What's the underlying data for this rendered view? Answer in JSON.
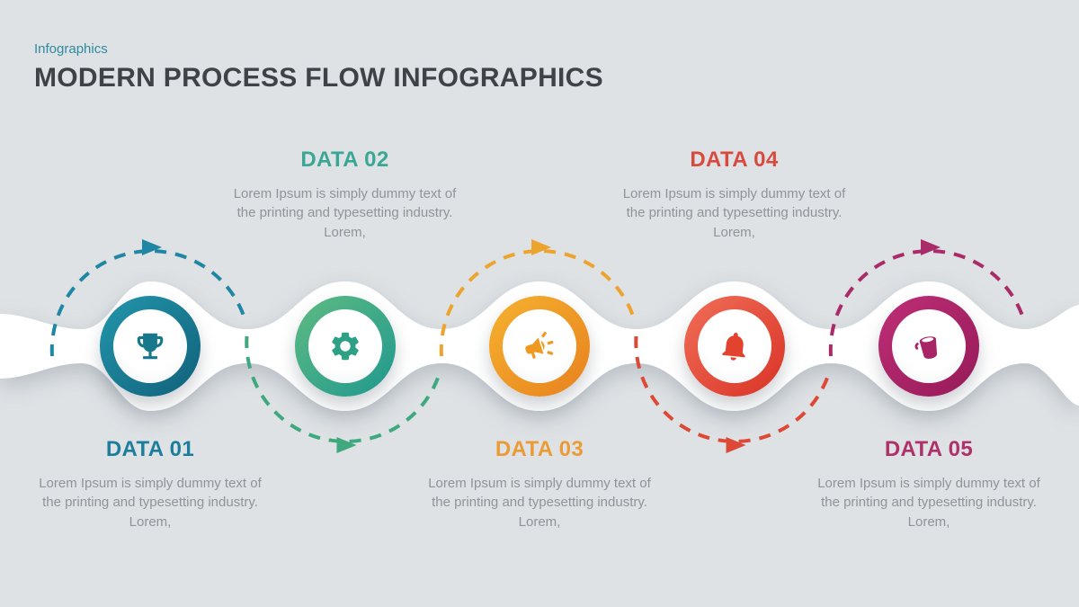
{
  "page": {
    "background_color": "#dee2e5",
    "ribbon_color": "#ffffff",
    "body_text_color": "#8f9499"
  },
  "header": {
    "eyebrow": "Infographics",
    "eyebrow_color": "#2e8ba0",
    "title": "MODERN PROCESS FLOW INFOGRAPHICS",
    "title_color": "#3e4347"
  },
  "steps": [
    {
      "title": "DATA 01",
      "description": "Lorem Ipsum is simply dummy text of the printing and typesetting industry. Lorem,",
      "label_position": "bottom",
      "icon": "trophy-icon",
      "label_color": "#1b7e9c",
      "ring_from": "#2297ac",
      "ring_to": "#11607a",
      "icon_color": "#17778c",
      "arrow_color": "#1f87a3"
    },
    {
      "title": "DATA 02",
      "description": "Lorem Ipsum is simply dummy text of the printing and typesetting industry. Lorem,",
      "label_position": "top",
      "icon": "gear-icon",
      "label_color": "#3aa794",
      "ring_from": "#5fbb82",
      "ring_to": "#1f988f",
      "icon_color": "#2da086",
      "arrow_color": "#3fa87e"
    },
    {
      "title": "DATA 03",
      "description": "Lorem Ipsum is simply dummy text of the printing and typesetting industry. Lorem,",
      "label_position": "bottom",
      "icon": "megaphone-icon",
      "label_color": "#eb9b36",
      "ring_from": "#f5b22f",
      "ring_to": "#e8811e",
      "icon_color": "#f0991f",
      "arrow_color": "#eda42e"
    },
    {
      "title": "DATA 04",
      "description": "Lorem Ipsum is simply dummy text of the printing and typesetting industry. Lorem,",
      "label_position": "top",
      "icon": "bell-icon",
      "label_color": "#d84a3e",
      "ring_from": "#f06e57",
      "ring_to": "#d93327",
      "icon_color": "#e2422e",
      "arrow_color": "#dc4936"
    },
    {
      "title": "DATA 05",
      "description": "Lorem Ipsum is simply dummy text of the printing and typesetting industry. Lorem,",
      "label_position": "bottom",
      "icon": "bucket-icon",
      "label_color": "#b03069",
      "ring_from": "#bf2e77",
      "ring_to": "#951a58",
      "icon_color": "#a82465",
      "arrow_color": "#a92b68"
    }
  ]
}
